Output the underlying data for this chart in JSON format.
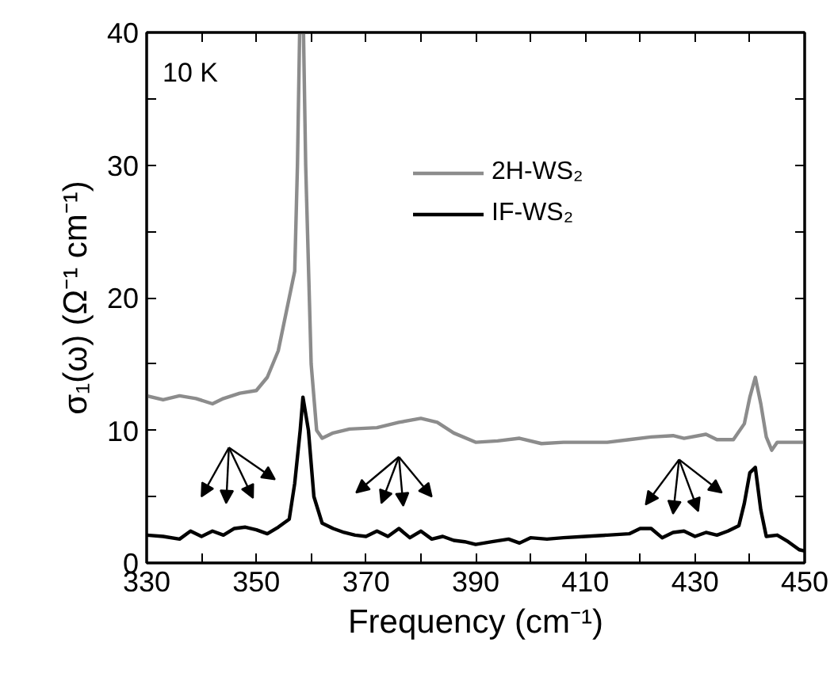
{
  "chart_data": {
    "type": "line",
    "xlabel": "Frequency (cm⁻¹)",
    "ylabel": "σ₁(ω) (Ω⁻¹ cm⁻¹)",
    "annotations": [
      "10 K"
    ],
    "xlim": [
      330,
      450
    ],
    "xticks": [
      330,
      {
        "value": 340,
        "label": null
      },
      350,
      {
        "value": 360,
        "label": null
      },
      370,
      {
        "value": 380,
        "label": null
      },
      390,
      {
        "value": 400,
        "label": null
      },
      410,
      {
        "value": 420,
        "label": null
      },
      430,
      {
        "value": 440,
        "label": null
      },
      450
    ],
    "ylim": [
      0,
      40
    ],
    "yticks": [
      0,
      {
        "value": 5,
        "label": null
      },
      10,
      {
        "value": 15,
        "label": null
      },
      20,
      {
        "value": 25,
        "label": null
      },
      30,
      {
        "value": 35,
        "label": null
      },
      40
    ],
    "grid": false,
    "legend": "top right",
    "line_style": "solid",
    "marker": "none",
    "series": [
      {
        "name": "2H-WS₂",
        "color": "#8c8c8c",
        "x": [
          330,
          333,
          336,
          339,
          342,
          344,
          347,
          350,
          352,
          354,
          356,
          357,
          357.5,
          357.9,
          358.6,
          359,
          360,
          361,
          362,
          364,
          367,
          372,
          376,
          380,
          383,
          386,
          390,
          394,
          398,
          402,
          406,
          410,
          414,
          418,
          422,
          426,
          428,
          432,
          434,
          437,
          439,
          440,
          441,
          442,
          443,
          444,
          445,
          450
        ],
        "values": [
          12.6,
          12.3,
          12.6,
          12.4,
          12.0,
          12.4,
          12.8,
          13,
          14,
          16,
          20,
          22,
          30,
          40,
          40,
          30,
          15,
          10,
          9.4,
          9.8,
          10.1,
          10.2,
          10.6,
          10.9,
          10.6,
          9.8,
          9.1,
          9.2,
          9.4,
          9.0,
          9.1,
          9.1,
          9.1,
          9.3,
          9.5,
          9.6,
          9.4,
          9.7,
          9.3,
          9.3,
          10.5,
          12.5,
          14,
          12,
          9.5,
          8.5,
          9.1,
          9.1
        ]
      },
      {
        "name": "IF-WS₂",
        "color": "#000000",
        "x": [
          330,
          333,
          336,
          338,
          340,
          342,
          344,
          346,
          348,
          350,
          352,
          354,
          356,
          357,
          358,
          358.5,
          359.5,
          360.5,
          362,
          364,
          366,
          368,
          370,
          372,
          374,
          376,
          378,
          380,
          382,
          384,
          386,
          388,
          390,
          393,
          396,
          398,
          400,
          403,
          406,
          410,
          414,
          418,
          420,
          422,
          424,
          426,
          428,
          430,
          432,
          434,
          436,
          438,
          439,
          440,
          441,
          442,
          443,
          445,
          447,
          449,
          450
        ],
        "values": [
          2.1,
          2.0,
          1.8,
          2.4,
          2.0,
          2.4,
          2.1,
          2.6,
          2.7,
          2.5,
          2.2,
          2.7,
          3.3,
          6,
          10,
          12.5,
          10,
          5,
          3.0,
          2.6,
          2.3,
          2.1,
          2.0,
          2.4,
          2.0,
          2.6,
          1.9,
          2.4,
          1.8,
          2.0,
          1.7,
          1.6,
          1.4,
          1.6,
          1.8,
          1.5,
          1.9,
          1.8,
          1.9,
          2.0,
          2.1,
          2.2,
          2.6,
          2.6,
          1.9,
          2.3,
          2.4,
          2.0,
          2.3,
          2.1,
          2.4,
          2.8,
          4.5,
          6.8,
          7.2,
          4.0,
          2.0,
          2.1,
          1.6,
          1.0,
          0.9
        ]
      }
    ]
  }
}
